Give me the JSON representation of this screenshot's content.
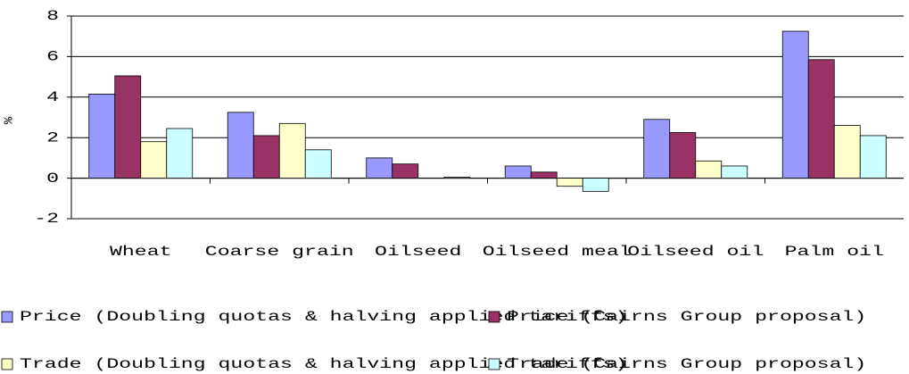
{
  "chart_data": {
    "type": "bar",
    "y_label": "%",
    "categories": [
      "Wheat",
      "Coarse grain",
      "Oilseed",
      "Oilseed meal",
      "Oilseed oil",
      "Palm oil"
    ],
    "series": [
      {
        "name": "Price (Doubling quotas & halving applied tariffs)",
        "color": "#9999ff",
        "values": [
          4.15,
          3.25,
          1.0,
          0.6,
          2.9,
          7.25
        ]
      },
      {
        "name": "Price (Cairns Group proposal)",
        "color": "#993366",
        "values": [
          5.05,
          2.1,
          0.7,
          0.3,
          2.25,
          5.85
        ]
      },
      {
        "name": "Trade (Doubling quotas & halving applied tariffs)",
        "color": "#ffffcc",
        "values": [
          1.8,
          2.7,
          0,
          -0.4,
          0.85,
          2.6
        ]
      },
      {
        "name": "Trade (Cairns Group proposal)",
        "color": "#ccffff",
        "values": [
          2.45,
          1.4,
          0.05,
          -0.65,
          0.6,
          2.1
        ]
      }
    ],
    "ylim": [
      -2,
      8
    ],
    "yticks": [
      -2,
      0,
      2,
      4,
      6,
      8
    ],
    "grid": true,
    "legend": "bottom"
  }
}
